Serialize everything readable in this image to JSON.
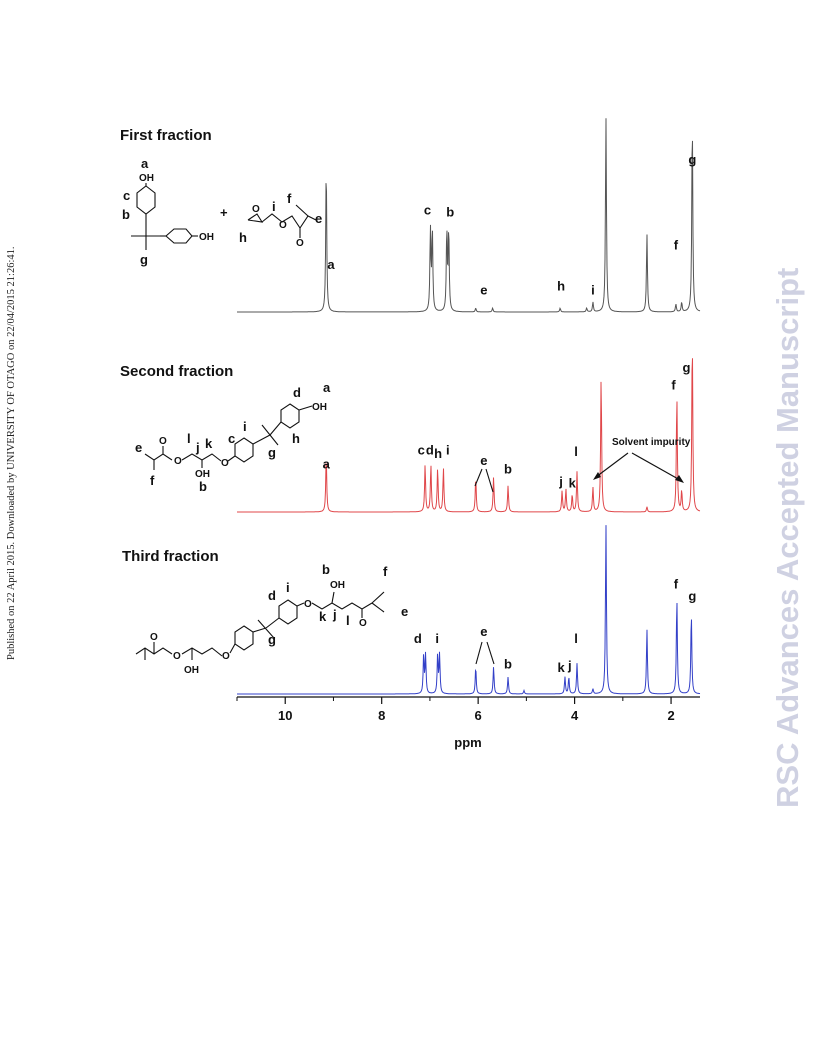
{
  "page": {
    "side_note": "Published on 22 April 2015. Downloaded by UNIVERSITY OF OTAGO on 22/04/2015 21:26:41.",
    "watermark": "RSC Advances Accepted Manuscript"
  },
  "chemistry": {
    "first": {
      "oh": "OH",
      "plus": "+"
    },
    "second": {
      "oh": "OH",
      "oh_chain": "OH"
    },
    "third": {
      "oh_top": "OH",
      "oh_bottom": "OH"
    }
  },
  "chart_data": {
    "type": "line",
    "xlabel": "ppm",
    "xlim": [
      11,
      1.4
    ],
    "reversed_x": true,
    "x_ticks": [
      10,
      8,
      6,
      4,
      2
    ],
    "series": [
      {
        "title": "First fraction",
        "color": "#555555",
        "peaks": [
          {
            "ppm": 9.15,
            "h": 0.76
          },
          {
            "ppm": 6.99,
            "h": 0.42
          },
          {
            "ppm": 6.95,
            "h": 0.42
          },
          {
            "ppm": 6.65,
            "h": 0.42
          },
          {
            "ppm": 6.61,
            "h": 0.42
          },
          {
            "ppm": 6.05,
            "h": 0.02
          },
          {
            "ppm": 5.7,
            "h": 0.02
          },
          {
            "ppm": 4.3,
            "h": 0.02
          },
          {
            "ppm": 3.75,
            "h": 0.02
          },
          {
            "ppm": 3.62,
            "h": 0.05
          },
          {
            "ppm": 3.35,
            "h": 1.0
          },
          {
            "ppm": 2.5,
            "h": 0.4
          },
          {
            "ppm": 1.9,
            "h": 0.04
          },
          {
            "ppm": 1.78,
            "h": 0.05
          },
          {
            "ppm": 1.56,
            "h": 1.0
          }
        ],
        "labels": [
          {
            "text": "a",
            "ppm": 9.05,
            "level": 0.22
          },
          {
            "text": "c",
            "ppm": 7.05,
            "level": 0.5
          },
          {
            "text": "b",
            "ppm": 6.58,
            "level": 0.49
          },
          {
            "text": "e",
            "ppm": 5.88,
            "level": 0.09
          },
          {
            "text": "h",
            "ppm": 4.28,
            "level": 0.11
          },
          {
            "text": "i",
            "ppm": 3.62,
            "level": 0.09
          },
          {
            "text": "f",
            "ppm": 1.9,
            "level": 0.32
          },
          {
            "text": "g",
            "ppm": 1.56,
            "level": 0.76
          }
        ]
      },
      {
        "title": "Second fraction",
        "color": "#e0474a",
        "peaks": [
          {
            "ppm": 9.15,
            "h": 0.32
          },
          {
            "ppm": 7.1,
            "h": 0.27
          },
          {
            "ppm": 6.98,
            "h": 0.27
          },
          {
            "ppm": 6.84,
            "h": 0.25
          },
          {
            "ppm": 6.72,
            "h": 0.25
          },
          {
            "ppm": 6.05,
            "h": 0.2
          },
          {
            "ppm": 5.68,
            "h": 0.2
          },
          {
            "ppm": 5.38,
            "h": 0.15
          },
          {
            "ppm": 4.26,
            "h": 0.12
          },
          {
            "ppm": 4.18,
            "h": 0.13
          },
          {
            "ppm": 4.05,
            "h": 0.1
          },
          {
            "ppm": 3.95,
            "h": 0.23
          },
          {
            "ppm": 3.62,
            "h": 0.14
          },
          {
            "ppm": 3.45,
            "h": 0.78
          },
          {
            "ppm": 2.5,
            "h": 0.03
          },
          {
            "ppm": 1.88,
            "h": 0.67
          },
          {
            "ppm": 1.78,
            "h": 0.12
          },
          {
            "ppm": 1.56,
            "h": 1.0
          }
        ],
        "labels": [
          {
            "text": "a",
            "ppm": 9.15,
            "level": 0.25
          },
          {
            "text": "c",
            "ppm": 7.18,
            "level": 0.33
          },
          {
            "text": "d",
            "ppm": 7.0,
            "level": 0.33
          },
          {
            "text": "h",
            "ppm": 6.83,
            "level": 0.31
          },
          {
            "text": "i",
            "ppm": 6.63,
            "level": 0.33
          },
          {
            "text": "e",
            "ppm": 5.88,
            "level": 0.27
          },
          {
            "text": "b",
            "ppm": 5.38,
            "level": 0.22
          },
          {
            "text": "j",
            "ppm": 4.28,
            "level": 0.15
          },
          {
            "text": "k",
            "ppm": 4.05,
            "level": 0.14
          },
          {
            "text": "l",
            "ppm": 3.97,
            "level": 0.32
          },
          {
            "text": "f",
            "ppm": 1.95,
            "level": 0.7
          },
          {
            "text": "g",
            "ppm": 1.68,
            "level": 0.8
          }
        ],
        "annotation": "Solvent impurity"
      },
      {
        "title": "Third fraction",
        "color": "#3340c8",
        "peaks": [
          {
            "ppm": 7.13,
            "h": 0.23
          },
          {
            "ppm": 7.09,
            "h": 0.23
          },
          {
            "ppm": 6.84,
            "h": 0.23
          },
          {
            "ppm": 6.8,
            "h": 0.23
          },
          {
            "ppm": 6.05,
            "h": 0.16
          },
          {
            "ppm": 5.68,
            "h": 0.16
          },
          {
            "ppm": 5.38,
            "h": 0.1
          },
          {
            "ppm": 5.05,
            "h": 0.02
          },
          {
            "ppm": 4.2,
            "h": 0.1
          },
          {
            "ppm": 4.12,
            "h": 0.1
          },
          {
            "ppm": 3.95,
            "h": 0.18
          },
          {
            "ppm": 3.62,
            "h": 0.03
          },
          {
            "ppm": 3.35,
            "h": 1.0
          },
          {
            "ppm": 2.5,
            "h": 0.38
          },
          {
            "ppm": 1.88,
            "h": 0.57
          },
          {
            "ppm": 1.58,
            "h": 0.48
          }
        ],
        "labels": [
          {
            "text": "d",
            "ppm": 7.25,
            "level": 0.3
          },
          {
            "text": "i",
            "ppm": 6.85,
            "level": 0.3
          },
          {
            "text": "e",
            "ppm": 5.88,
            "level": 0.34
          },
          {
            "text": "b",
            "ppm": 5.38,
            "level": 0.15
          },
          {
            "text": "k",
            "ppm": 4.28,
            "level": 0.13
          },
          {
            "text": "j",
            "ppm": 4.1,
            "level": 0.14
          },
          {
            "text": "l",
            "ppm": 3.97,
            "level": 0.3
          },
          {
            "text": "f",
            "ppm": 1.9,
            "level": 0.62
          },
          {
            "text": "g",
            "ppm": 1.56,
            "level": 0.55
          }
        ]
      }
    ]
  }
}
